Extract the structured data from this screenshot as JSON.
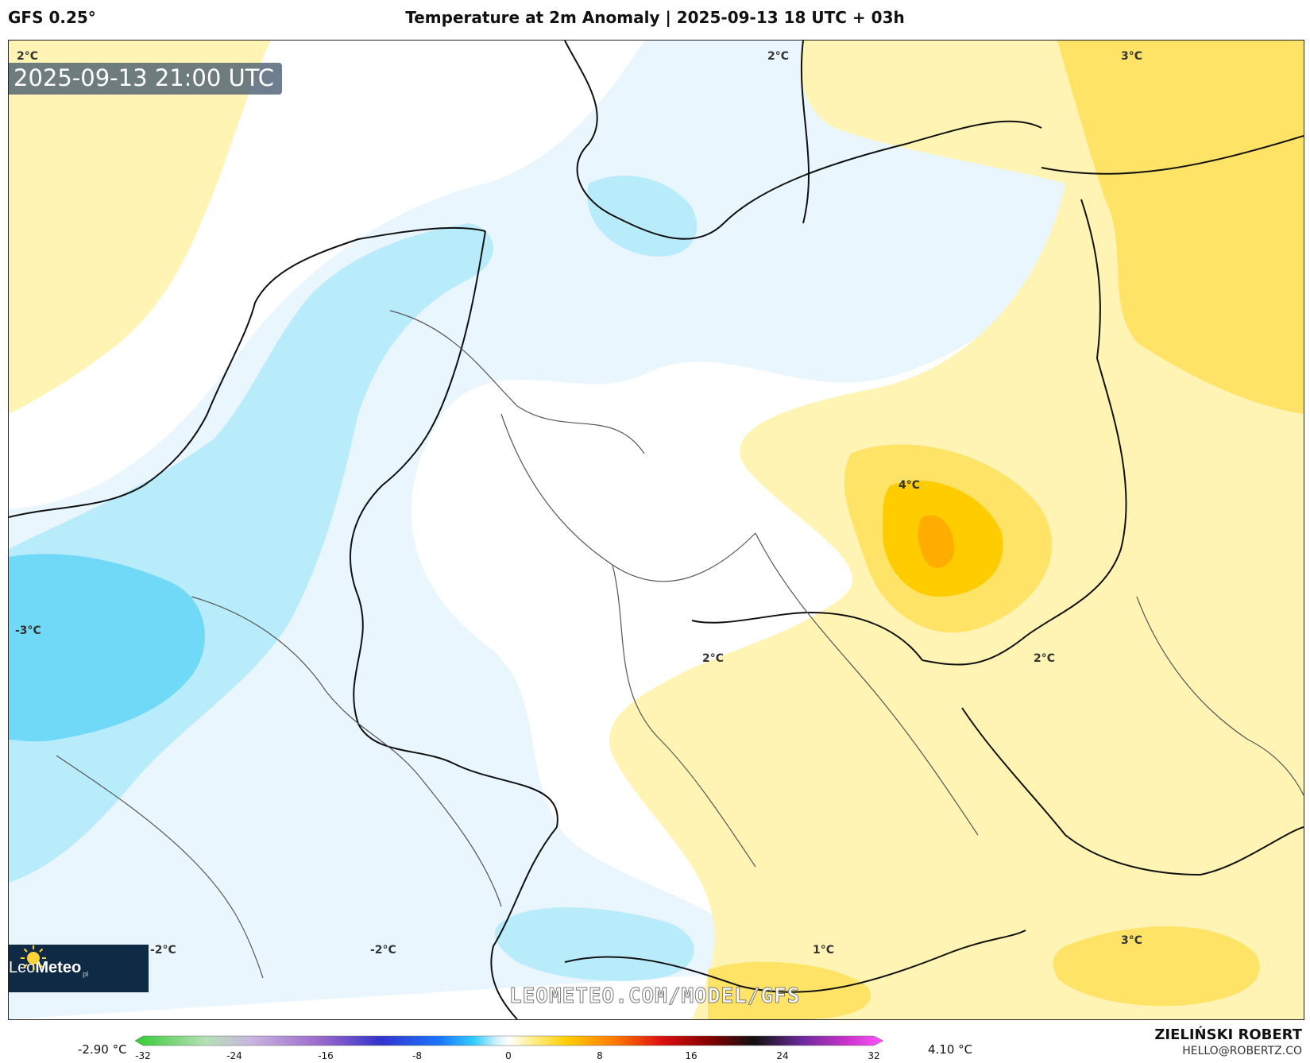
{
  "header": {
    "model": "GFS 0.25°",
    "title": "Temperature at 2m Anomaly | 2025-09-13 18 UTC + 03h"
  },
  "map": {
    "valid_time": "2025-09-13 21:00 UTC",
    "contour_labels": [
      "2°C",
      "2°C",
      "3°C",
      "4°C",
      "2°C",
      "2°C",
      "-3°C",
      "-2°C",
      "-2°C",
      "1°C",
      "3°C"
    ],
    "logo_text_light": "Leo",
    "logo_text_bold": "Meteo",
    "logo_suffix": "pl",
    "watermark": "LEOMETEO.COM/MODEL/GFS",
    "colors": {
      "cold_light": "#e9f6fd",
      "cold_mid": "#b9ecfb",
      "cold_strong": "#6fd9f7",
      "warm_light": "#fff4b3",
      "warm_mid": "#ffe366",
      "warm_strong": "#ffcc00",
      "warm_peak": "#ffad00"
    }
  },
  "colorbar": {
    "min_label": "-2.90 °C",
    "max_label": "4.10 °C",
    "ticks": [
      "-32",
      "-24",
      "-16",
      "-8",
      "0",
      "8",
      "16",
      "24",
      "32"
    ],
    "range": [
      -32,
      32
    ],
    "stops": [
      {
        "v": -32,
        "c": "#33cc33"
      },
      {
        "v": -26,
        "c": "#b5e0b5"
      },
      {
        "v": -22,
        "c": "#c9b4e0"
      },
      {
        "v": -16,
        "c": "#9966cc"
      },
      {
        "v": -11,
        "c": "#3333cc"
      },
      {
        "v": -6,
        "c": "#1a75ff"
      },
      {
        "v": -3,
        "c": "#33ccff"
      },
      {
        "v": -1,
        "c": "#d6f3ff"
      },
      {
        "v": 0,
        "c": "#ffffff"
      },
      {
        "v": 2,
        "c": "#ffee88"
      },
      {
        "v": 5,
        "c": "#ffcc00"
      },
      {
        "v": 9,
        "c": "#ff7a00"
      },
      {
        "v": 13,
        "c": "#dd1111"
      },
      {
        "v": 17,
        "c": "#880000"
      },
      {
        "v": 21,
        "c": "#111111"
      },
      {
        "v": 25,
        "c": "#6b2a9a"
      },
      {
        "v": 29,
        "c": "#cc33cc"
      },
      {
        "v": 32,
        "c": "#ff55ff"
      }
    ]
  },
  "credits": {
    "author": "ZIELIŃSKI ROBERT",
    "email": "HELLO@ROBERTZ.CO"
  }
}
